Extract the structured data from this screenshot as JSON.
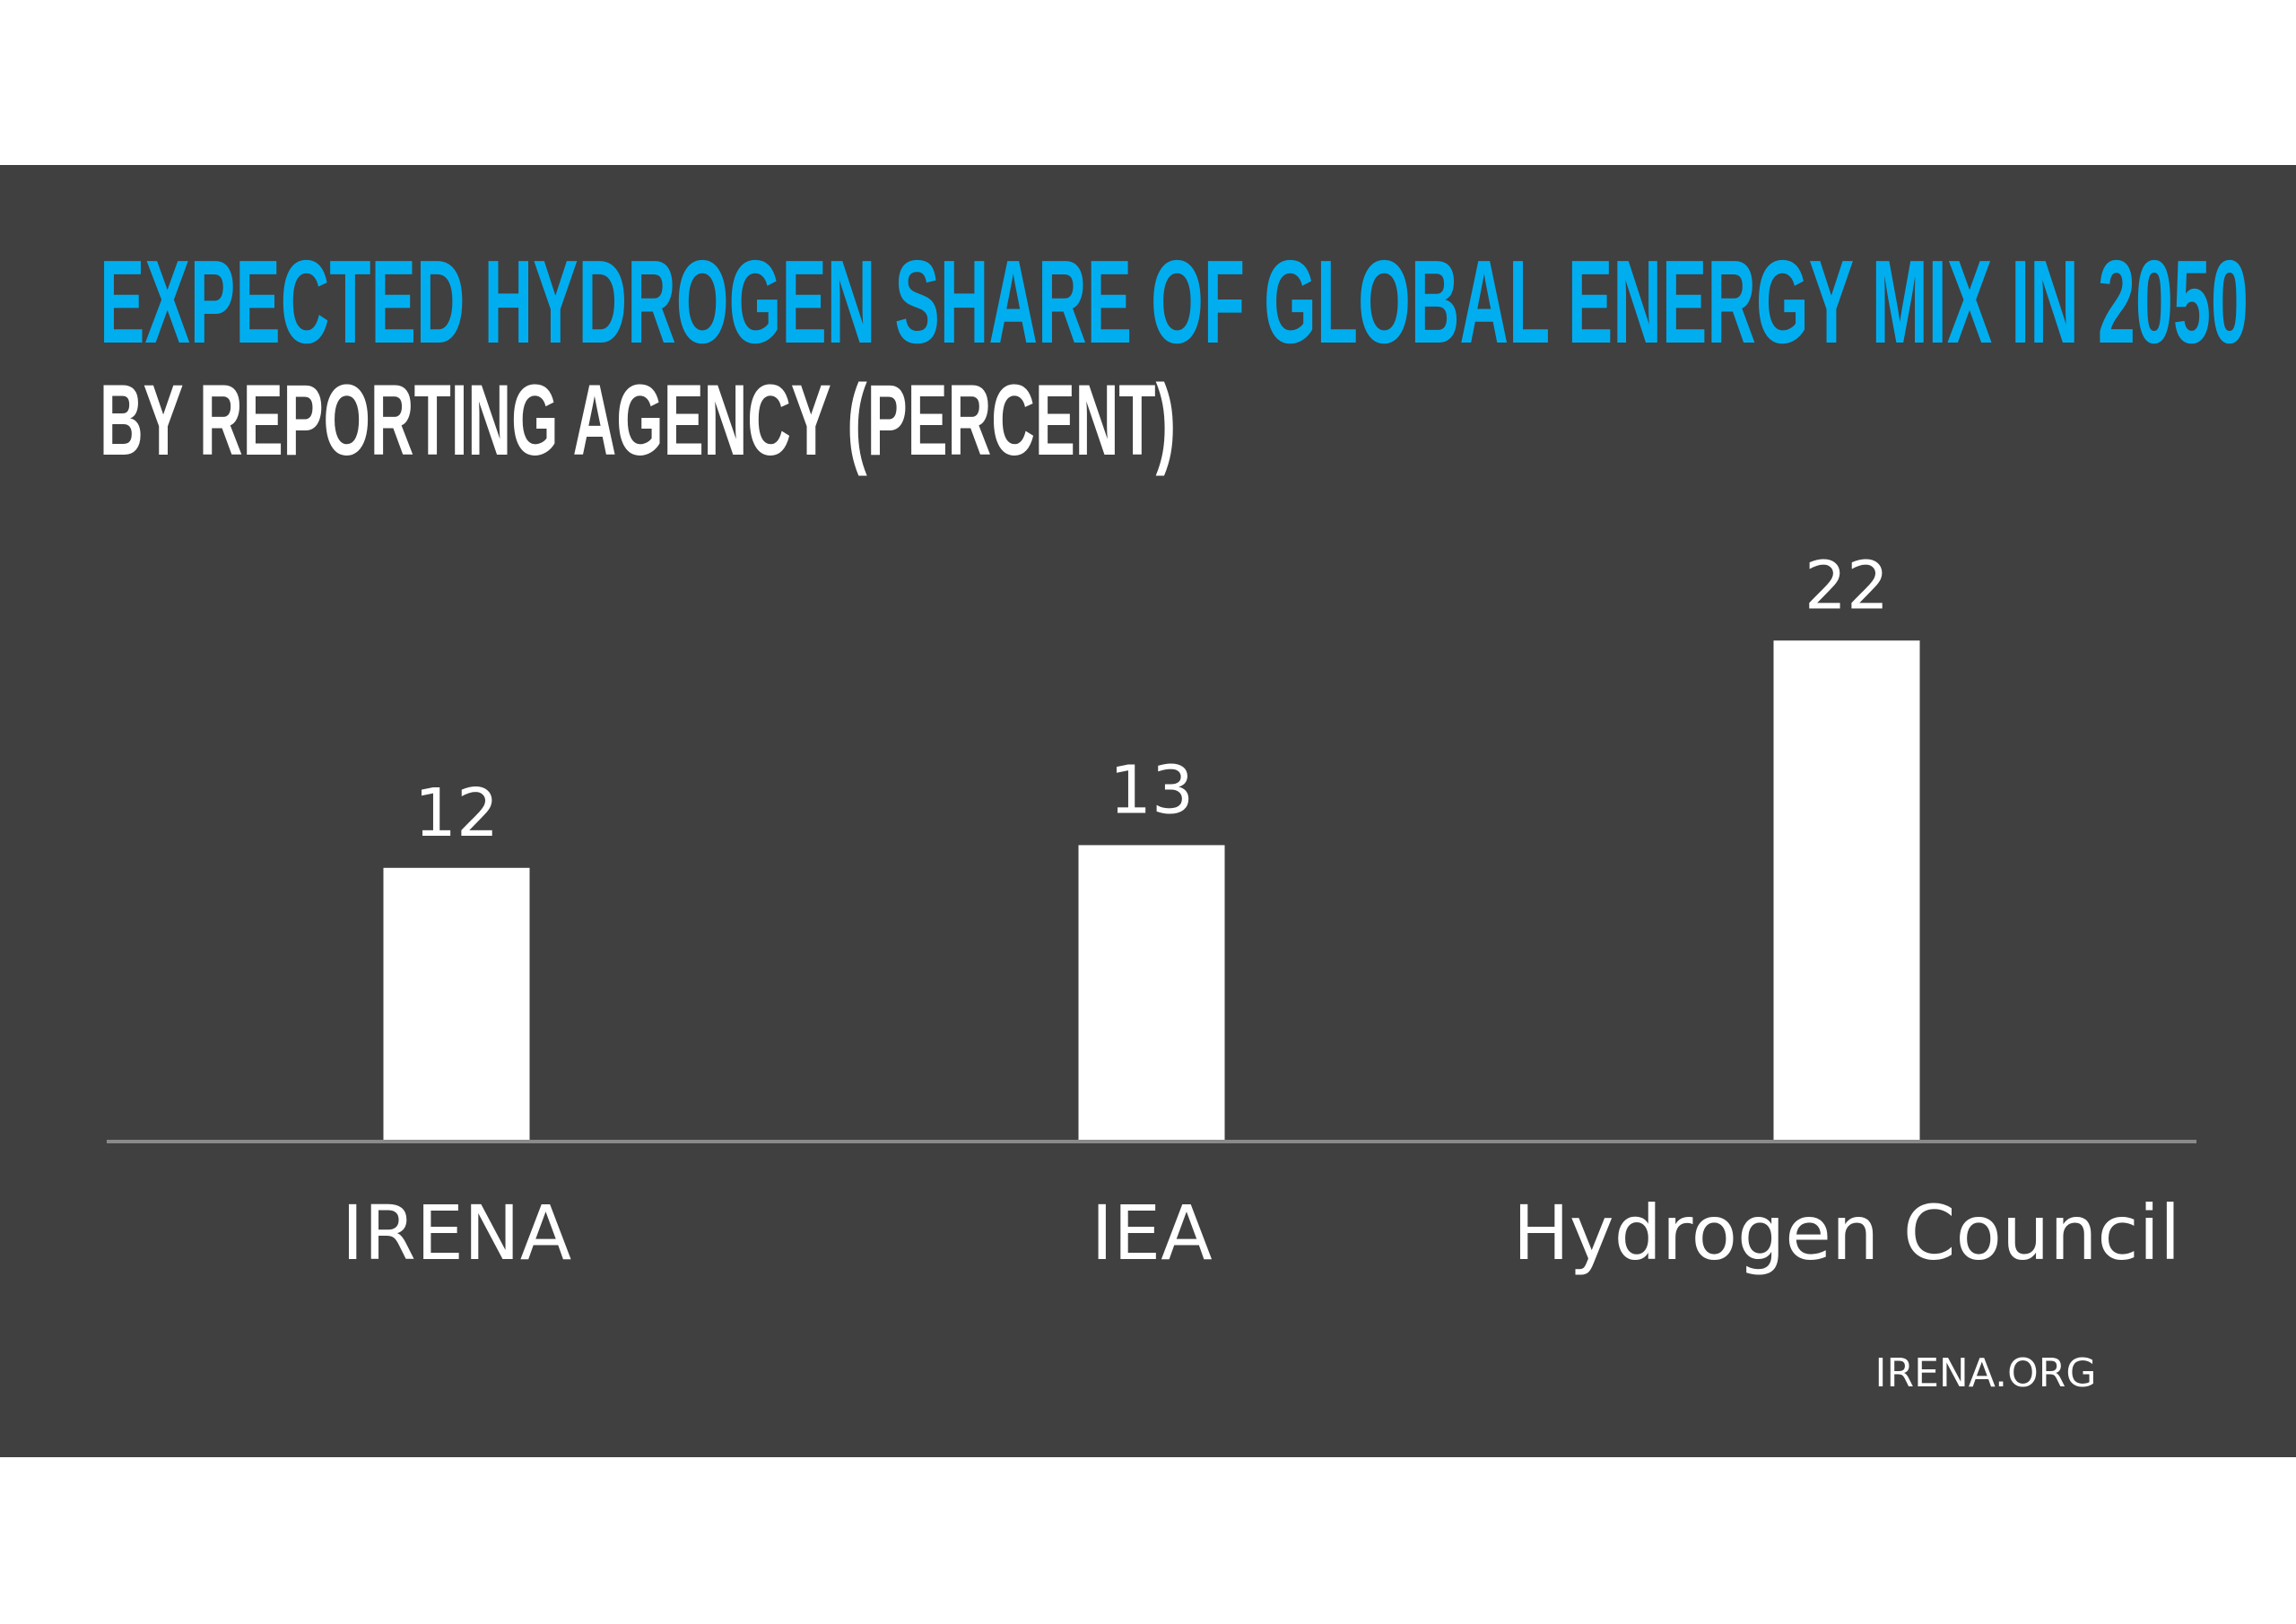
{
  "colors": {
    "panel": "#404040",
    "title": "#00AEEF",
    "subtitle": "#FFFFFF",
    "bar": "#FFFFFF",
    "axis": "#8A8A8A",
    "page": "#FFFFFF"
  },
  "chart_data": {
    "type": "bar",
    "title": "EXPECTED HYDROGEN SHARE OF GLOBAL ENERGY MIX IN 2050",
    "subtitle": "BY REPORTING AGENCY (PERCENT)",
    "categories": [
      "IRENA",
      "IEA",
      "Hydrogen Council"
    ],
    "values": [
      12,
      13,
      22
    ],
    "data_labels": [
      "12",
      "13",
      "22"
    ],
    "xlabel": "",
    "ylabel": "",
    "ylim": [
      0,
      22
    ],
    "grid": false,
    "legend": "none"
  },
  "footer": {
    "source": "IRENA.ORG"
  }
}
